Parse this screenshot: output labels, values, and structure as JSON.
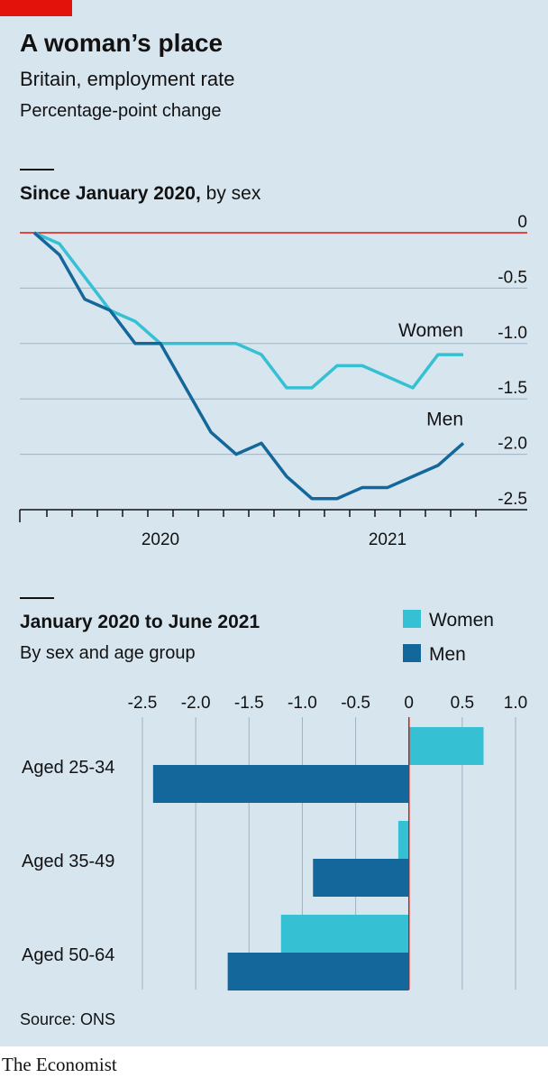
{
  "header": {
    "title": "A woman’s place",
    "subtitle": "Britain, employment rate",
    "unit": "Percentage-point change"
  },
  "chart_data": [
    {
      "type": "line",
      "title": "Since January 2020,",
      "subtitle": "by sex",
      "categories": [
        null,
        null,
        null,
        null,
        null,
        "2020",
        null,
        null,
        null,
        null,
        null,
        null,
        null,
        null,
        "2021",
        null,
        null,
        null
      ],
      "series": [
        {
          "name": "Women",
          "color": "#36c0d4",
          "values": [
            0,
            -0.1,
            -0.4,
            -0.7,
            -0.8,
            -1.0,
            -1.0,
            -1.0,
            -1.0,
            -1.1,
            -1.4,
            -1.4,
            -1.2,
            -1.2,
            -1.3,
            -1.4,
            -1.1,
            -1.1
          ]
        },
        {
          "name": "Men",
          "color": "#14679b",
          "values": [
            0,
            -0.2,
            -0.6,
            -0.7,
            -1.0,
            -1.0,
            -1.4,
            -1.8,
            -2.0,
            -1.9,
            -2.2,
            -2.4,
            -2.4,
            -2.3,
            -2.3,
            -2.2,
            -2.1,
            -1.9
          ]
        }
      ],
      "ylim": [
        -2.5,
        0
      ],
      "yticks": [
        0,
        -0.5,
        {
          "value": -1,
          "label": "-1.0"
        },
        -1.5,
        {
          "value": -2,
          "label": "-2.0"
        },
        -2.5
      ],
      "grid": true,
      "zeroline_color": "#e3120b"
    },
    {
      "type": "barh",
      "title": "January 2020 to June 2021",
      "subtitle": "By sex and age group",
      "categories": [
        "Aged 25-34",
        "Aged 35-49",
        "Aged 50-64"
      ],
      "series": [
        {
          "name": "Women",
          "color": "#36c0d4",
          "values": [
            0.7,
            -0.1,
            -1.2
          ]
        },
        {
          "name": "Men",
          "color": "#14679b",
          "values": [
            -2.4,
            -0.9,
            -1.7
          ]
        }
      ],
      "xlim": [
        -2.5,
        1.0
      ],
      "xticks": [
        -2.5,
        {
          "value": -2,
          "label": "-2.0"
        },
        -1.5,
        {
          "value": -1,
          "label": "-1.0"
        },
        -0.5,
        0,
        0.5,
        {
          "value": 1,
          "label": "1.0"
        }
      ],
      "grid": true,
      "legend": "top-right",
      "zeroline_color": "#e3120b"
    }
  ],
  "footer": {
    "source": "Source: ONS",
    "brand": "The Economist"
  }
}
